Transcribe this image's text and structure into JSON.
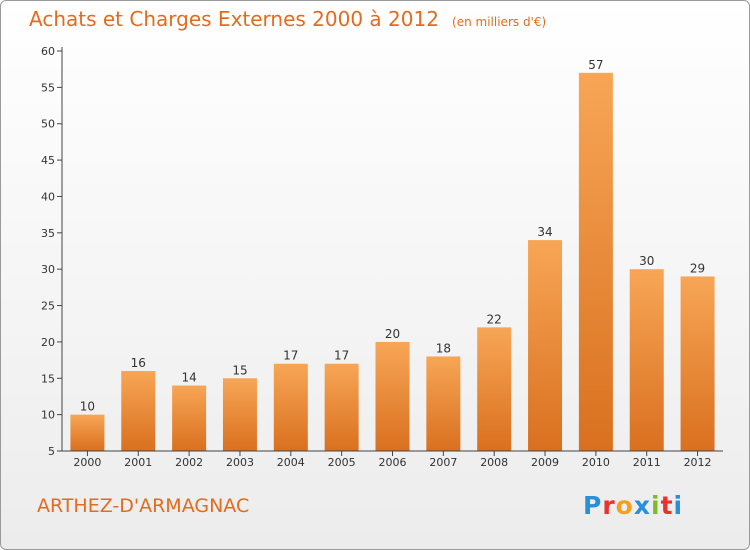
{
  "header": {
    "title": "Achats et Charges Externes 2000 à 2012",
    "unit": "(en milliers d'€)"
  },
  "footer": {
    "commune": "ARTHEZ-D'ARMAGNAC",
    "brand_letters": [
      "P",
      "r",
      "o",
      "x",
      "i",
      "t",
      "i"
    ],
    "brand_colors": [
      "#2a8fd8",
      "#e8322b",
      "#f3a11c",
      "#2a8fd8",
      "#7cbb2b",
      "#e8322b",
      "#2a8fd8"
    ]
  },
  "chart_data": {
    "type": "bar",
    "title": "Achats et Charges Externes 2000 à 2012",
    "subtitle": "(en milliers d'€)",
    "categories": [
      "2000",
      "2001",
      "2002",
      "2003",
      "2004",
      "2005",
      "2006",
      "2007",
      "2008",
      "2009",
      "2010",
      "2011",
      "2012"
    ],
    "values": [
      10,
      16,
      14,
      15,
      17,
      17,
      20,
      18,
      22,
      34,
      57,
      30,
      29
    ],
    "xlabel": "",
    "ylabel": "",
    "ylim": [
      5,
      60
    ],
    "yticks": [
      5,
      10,
      15,
      20,
      25,
      30,
      35,
      40,
      45,
      50,
      55,
      60
    ],
    "grid": false,
    "bar_color_light": "#f7a656",
    "bar_color_dark": "#d9701f",
    "axis_color": "#444444"
  }
}
